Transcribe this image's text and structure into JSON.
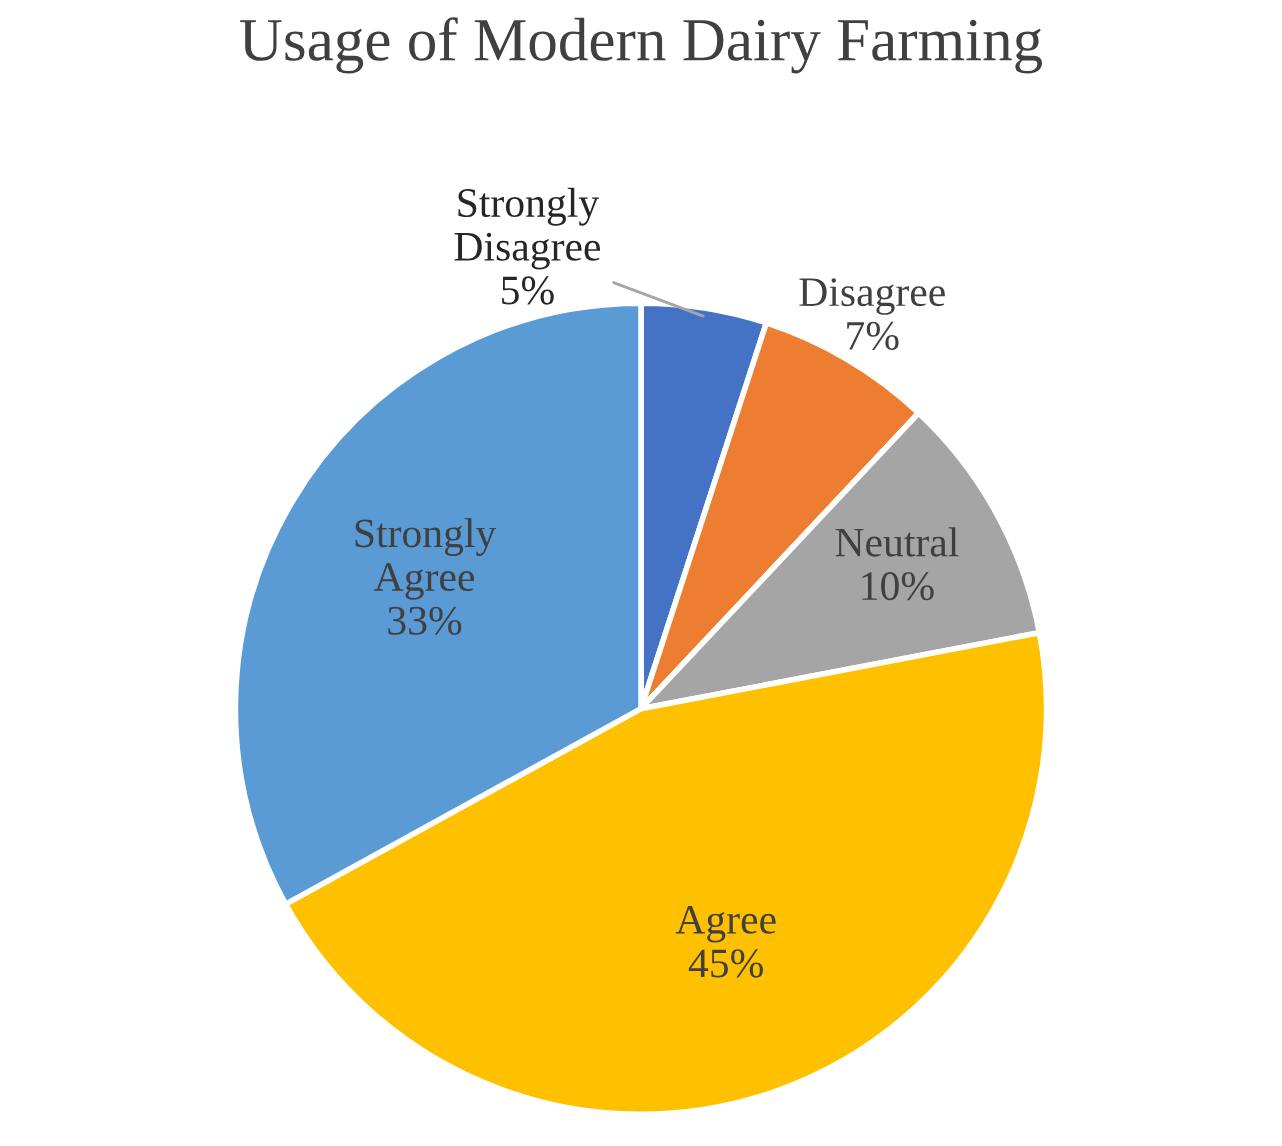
{
  "chart_data": {
    "type": "pie",
    "title": "Usage of Modern Dairy Farming",
    "categories": [
      "Strongly Disagree",
      "Disagree",
      "Neutral",
      "Agree",
      "Strongly Agree"
    ],
    "values": [
      5,
      7,
      10,
      45,
      33
    ],
    "value_labels": [
      "5%",
      "7%",
      "10%",
      "45%",
      "33%"
    ],
    "colors": [
      "#4472c4",
      "#ed7d31",
      "#a5a5a5",
      "#ffc000",
      "#5b9bd5"
    ],
    "legend": false
  }
}
